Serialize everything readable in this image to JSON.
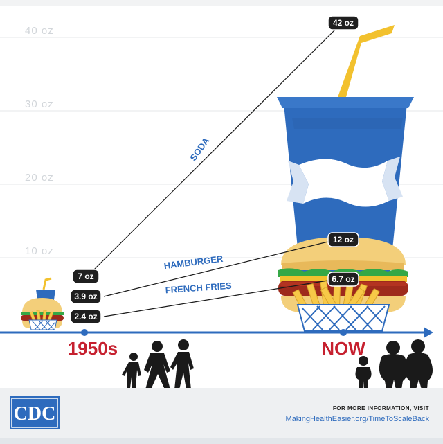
{
  "chart_data": {
    "type": "line",
    "title": "",
    "xlabel": "",
    "ylabel": "",
    "categories": [
      "1950s",
      "NOW"
    ],
    "ylim": [
      0,
      44
    ],
    "y_ticks": [
      "10 oz",
      "20 oz",
      "30 oz",
      "40 oz"
    ],
    "y_tick_values": [
      10,
      20,
      30,
      40
    ],
    "grid": true,
    "series": [
      {
        "name": "SODA",
        "values": [
          7,
          42
        ],
        "labels": [
          "7 oz",
          "42 oz"
        ]
      },
      {
        "name": "HAMBURGER",
        "values": [
          3.9,
          12
        ],
        "labels": [
          "3.9 oz",
          "12 oz"
        ]
      },
      {
        "name": "FRENCH FRIES",
        "values": [
          2.4,
          6.7
        ],
        "labels": [
          "2.4 oz",
          "6.7 oz"
        ]
      }
    ]
  },
  "colors": {
    "axis": "#2e6bbd",
    "era_label": "#c6202f",
    "pill": "#1f1f1f",
    "cup": "#2e6bbd",
    "straw": "#f2c12e",
    "grid": "#e4e7ea",
    "footer_bg": "#eef0f2"
  },
  "cup_label": "soda",
  "footer": {
    "logo": "CDC",
    "info_text": "FOR MORE INFORMATION, VISIT",
    "link_text": "MakingHealthEasier.org/TimeToScaleBack"
  },
  "icons": [
    "family-1950s-icon",
    "family-now-icon",
    "soda-cup-icon",
    "hamburger-icon",
    "fries-icon",
    "cdc-logo-icon"
  ]
}
